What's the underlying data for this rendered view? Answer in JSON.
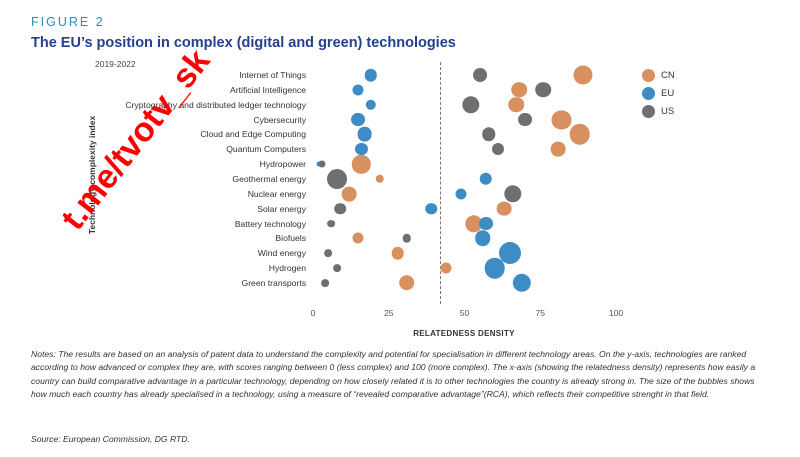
{
  "figure_label": "FIGURE 2",
  "title": "The EU’s position in complex (digital and green) technologies",
  "notes": "Notes: The results are based on an analysis of patent data to understand the complexity and potential for specialisation in different technology areas. On the y-axis, technologies are ranked according to how advanced or complex they are, with scores ranging between 0 (less complex) and 100 (more complex). The x-axis (showing the relatedness density) represents how easily a country can build comparative advantage in a particular technology, depending on how closely related it is to other technologies the country is already strong in. The size of the bubbles shows how much each country has already specialised in a technology, using a measure of “revealed comparative advantage”(RCA), which reflects their competitive strenght in that field.",
  "source": "Source: European Commission, DG RTD.",
  "watermark": "t.me/tvotv_sk",
  "colors": {
    "CN": "#d9905f",
    "EU": "#3d8dc4",
    "US": "#6f6f6f"
  },
  "chart_data": {
    "type": "scatter",
    "subtitle": "2019-2022",
    "xlabel": "RELATEDNESS DENSITY",
    "ylabel": "Technology complexity index",
    "xlim": [
      0,
      100
    ],
    "xticks": [
      0,
      25,
      50,
      75,
      100
    ],
    "reference_line_x": 42,
    "legend_position": "top-right",
    "categories": [
      "Internet of Things",
      "Artificial Intelligence",
      "Cryptography and distributed ledger technology",
      "Cybersecurity",
      "Cloud and Edge Computing",
      "Quantum Computers",
      "Hydropower",
      "Geothermal energy",
      "Nuclear energy",
      "Solar energy",
      "Battery technology",
      "Biofuels",
      "Wind energy",
      "Hydrogen",
      "Green transports"
    ],
    "series": [
      {
        "name": "CN",
        "x": [
          89,
          68,
          67,
          82,
          88,
          81,
          16,
          22,
          12,
          63,
          53,
          15,
          28,
          44,
          31
        ],
        "size": [
          3,
          2,
          2,
          3,
          3.5,
          1.8,
          2.8,
          0.6,
          1.8,
          1.8,
          2.5,
          1,
          1.3,
          1,
          2
        ]
      },
      {
        "name": "EU",
        "x": [
          19,
          15,
          19,
          15,
          17,
          16,
          2,
          57,
          49,
          39,
          57,
          56,
          65,
          60,
          69
        ],
        "size": [
          1.3,
          1,
          0.9,
          1.6,
          1.8,
          1.2,
          0.2,
          1.3,
          1,
          1.1,
          1.6,
          2,
          4,
          3.5,
          2.8
        ]
      },
      {
        "name": "US",
        "x": [
          55,
          76,
          52,
          70,
          58,
          61,
          3,
          8,
          66,
          9,
          6,
          31,
          5,
          8,
          4
        ],
        "size": [
          1.6,
          2,
          2.5,
          1.6,
          1.5,
          1.2,
          0.4,
          3.3,
          2.5,
          1.1,
          0.5,
          0.6,
          0.5,
          0.5,
          0.5
        ]
      }
    ]
  }
}
